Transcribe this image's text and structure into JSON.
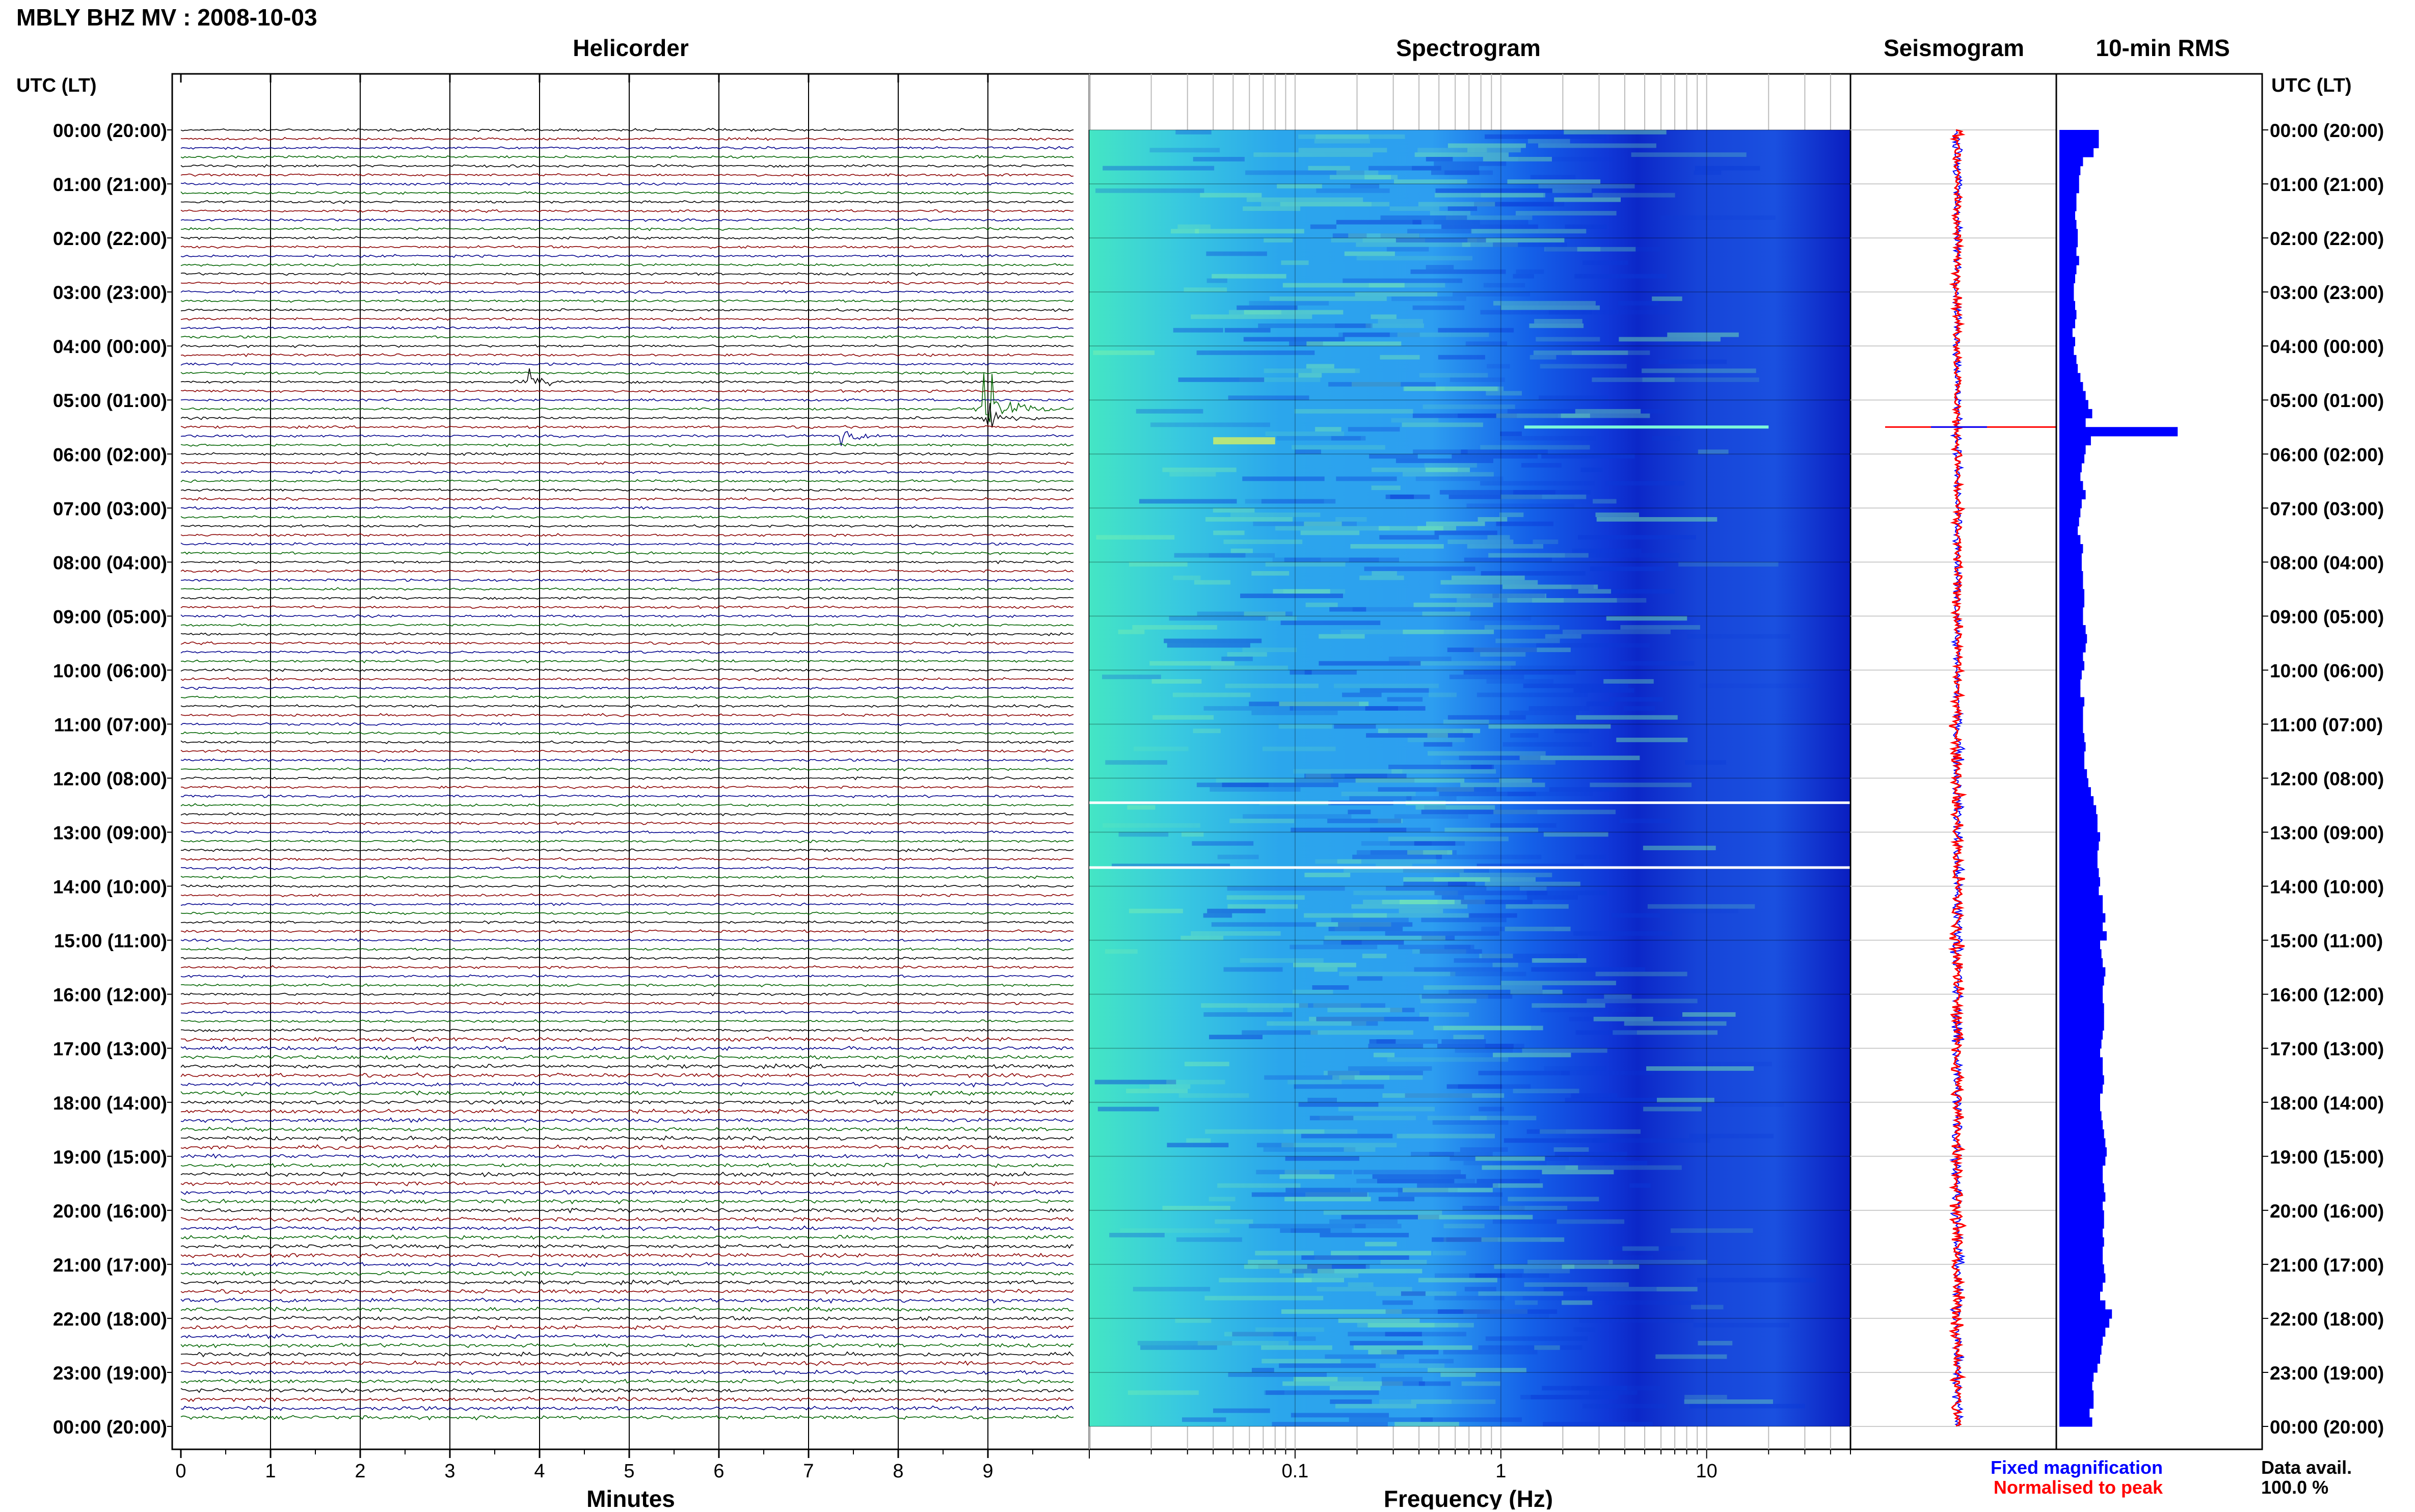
{
  "header": {
    "title": "MBLY BHZ MV : 2008-10-03",
    "left_axis_label": "UTC (LT)",
    "right_axis_label": "UTC (LT)"
  },
  "panels": {
    "helicorder": "Helicorder",
    "spectrogram": "Spectrogram",
    "seismogram": "Seismogram",
    "rms": "10-min RMS"
  },
  "time_labels": [
    "00:00 (20:00)",
    "01:00 (21:00)",
    "02:00 (22:00)",
    "03:00 (23:00)",
    "04:00 (00:00)",
    "05:00 (01:00)",
    "06:00 (02:00)",
    "07:00 (03:00)",
    "08:00 (04:00)",
    "09:00 (05:00)",
    "10:00 (06:00)",
    "11:00 (07:00)",
    "12:00 (08:00)",
    "13:00 (09:00)",
    "14:00 (10:00)",
    "15:00 (11:00)",
    "16:00 (12:00)",
    "17:00 (13:00)",
    "18:00 (14:00)",
    "19:00 (15:00)",
    "20:00 (16:00)",
    "21:00 (17:00)",
    "22:00 (18:00)",
    "23:00 (19:00)",
    "00:00 (20:00)"
  ],
  "legend": {
    "fixed": "Fixed magnification",
    "normalised": "Normalised to peak",
    "data_avail_label": "Data avail.",
    "data_avail_value": "100.0 %"
  },
  "colors": {
    "helicorder_cycle": [
      "#000000",
      "#8b0000",
      "#00008b",
      "#006400"
    ],
    "seismogram_fixed": "#0000ff",
    "seismogram_normalised": "#ff0000",
    "rms_bar": "#0000ff",
    "spectrogram_low": "#3ee8c8",
    "spectrogram_mid": "#1a8cf0",
    "spectrogram_high": "#0a1ec8"
  },
  "chart_data": [
    {
      "type": "line",
      "name": "helicorder",
      "title": "Helicorder",
      "xlabel": "Minutes",
      "ylabel": "UTC (LT)",
      "x_ticks": [
        0,
        1,
        2,
        3,
        4,
        5,
        6,
        7,
        8,
        9
      ],
      "xlim": [
        0,
        10
      ],
      "traces_per_hour": 6,
      "trace_count": 144,
      "events": [
        {
          "trace": 31,
          "minute": 9.0,
          "amplitude": 6
        },
        {
          "trace": 32,
          "minute": 9.0,
          "amplitude": 2.5
        },
        {
          "trace": 28,
          "minute": 3.9,
          "amplitude": 1.5
        },
        {
          "trace": 34,
          "minute": 7.4,
          "amplitude": 1.2
        }
      ]
    },
    {
      "type": "heatmap",
      "name": "spectrogram",
      "title": "Spectrogram",
      "xlabel": "Frequency (Hz)",
      "x_scale": "log",
      "x_ticks": [
        0.1,
        1,
        10
      ],
      "x_tick_labels": [
        "0.1",
        "1",
        "10"
      ],
      "xlim": [
        0.01,
        50
      ],
      "gaps_hours": [
        12.45,
        13.65
      ],
      "event_hours": [
        5.5
      ]
    },
    {
      "type": "line",
      "name": "seismogram",
      "title": "Seismogram",
      "series": [
        {
          "name": "Fixed magnification"
        },
        {
          "name": "Normalised to peak"
        }
      ],
      "event_hours": [
        5.5
      ]
    },
    {
      "type": "bar",
      "name": "rms",
      "title": "10-min RMS",
      "orientation": "horizontal",
      "bins": 144,
      "values": [
        3,
        3,
        2.6,
        1.8,
        1.6,
        1.5,
        1.5,
        1.3,
        1.3,
        1.2,
        1.3,
        1.4,
        1.4,
        1.3,
        1.5,
        1.3,
        1.2,
        1.1,
        1.1,
        1.2,
        1.3,
        1.2,
        1.0,
        1.2,
        1.1,
        1.3,
        1.4,
        1.6,
        1.8,
        2.0,
        2.2,
        2.5,
        2.0,
        9.0,
        2.4,
        2.0,
        1.9,
        1.7,
        1.6,
        1.8,
        2.0,
        1.7,
        1.6,
        1.5,
        1.4,
        1.6,
        1.8,
        1.7,
        1.7,
        1.8,
        1.8,
        1.9,
        1.9,
        1.8,
        1.8,
        2.0,
        2.1,
        2.0,
        1.8,
        1.9,
        1.7,
        1.6,
        1.6,
        1.9,
        1.8,
        1.8,
        1.8,
        1.9,
        2.0,
        1.9,
        1.9,
        2.1,
        2.2,
        2.4,
        2.6,
        2.8,
        2.9,
        2.9,
        3.1,
        3.0,
        2.9,
        2.9,
        3.0,
        3.1,
        3.0,
        3.3,
        3.3,
        3.5,
        3.3,
        3.6,
        3.1,
        3.2,
        3.3,
        3.5,
        3.4,
        3.3,
        3.3,
        3.4,
        3.4,
        3.4,
        3.3,
        3.2,
        3.1,
        3.3,
        3.3,
        3.4,
        3.3,
        3.1,
        3.1,
        3.2,
        3.3,
        3.4,
        3.5,
        3.6,
        3.5,
        3.3,
        3.3,
        3.4,
        3.5,
        3.3,
        3.4,
        3.4,
        3.3,
        3.4,
        3.3,
        3.3,
        3.4,
        3.5,
        3.3,
        3.1,
        3.5,
        4.0,
        3.8,
        3.5,
        3.3,
        3.2,
        3.1,
        2.9,
        2.6,
        2.5,
        2.6,
        2.6,
        2.3,
        2.5
      ],
      "xlim": [
        0,
        10
      ]
    }
  ]
}
